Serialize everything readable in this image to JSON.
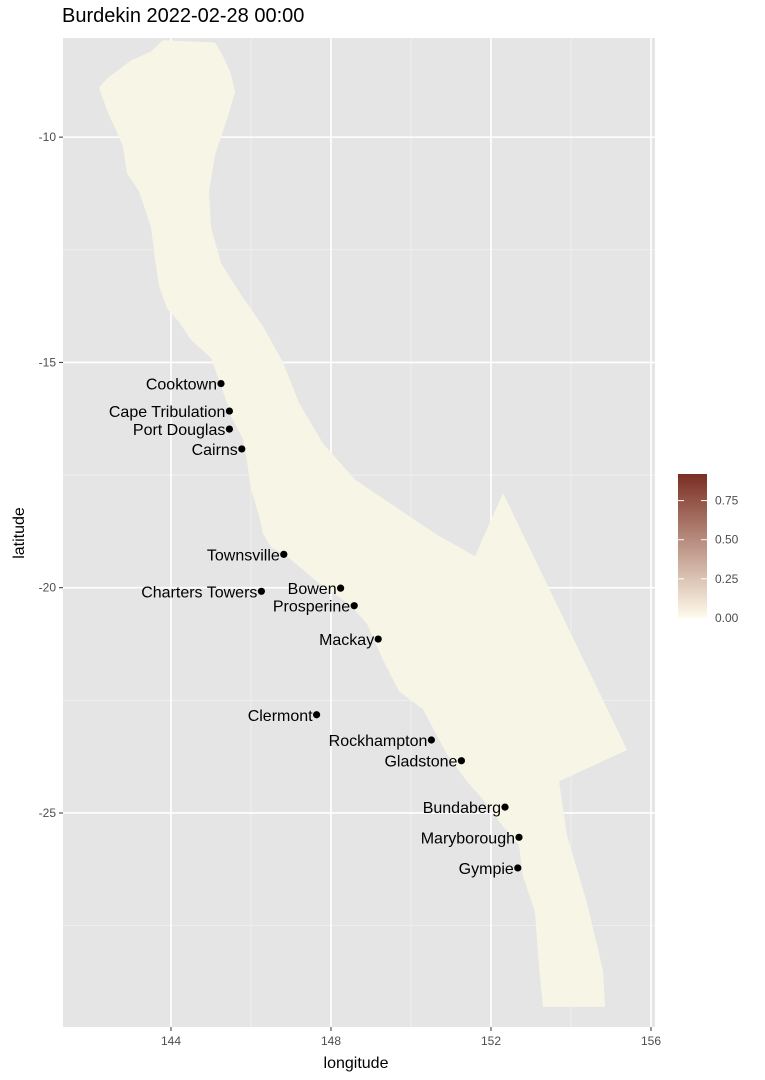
{
  "title": "Burdekin 2022-02-28 00:00",
  "chart_data": {
    "type": "map",
    "xlabel": "longitude",
    "ylabel": "latitude",
    "xlim": [
      141.3,
      156.1
    ],
    "ylim": [
      -29.75,
      -7.8
    ],
    "x_ticks": [
      {
        "value": 144,
        "label": "144"
      },
      {
        "value": 148,
        "label": "148"
      },
      {
        "value": 152,
        "label": "152"
      },
      {
        "value": 156,
        "label": "156"
      }
    ],
    "y_ticks": [
      {
        "value": -10,
        "label": "-10"
      },
      {
        "value": -15,
        "label": "-15"
      },
      {
        "value": -20,
        "label": "-20"
      },
      {
        "value": -25,
        "label": "-25"
      }
    ],
    "grid": true,
    "panel_color": "#e5e5e5",
    "region_color": "#f7f6e6",
    "region_outline": [
      [
        143.8,
        -7.85
      ],
      [
        145.1,
        -7.9
      ],
      [
        145.3,
        -8.2
      ],
      [
        145.5,
        -8.6
      ],
      [
        145.6,
        -9.0
      ],
      [
        145.4,
        -9.6
      ],
      [
        145.1,
        -10.4
      ],
      [
        144.95,
        -11.2
      ],
      [
        145.0,
        -12.0
      ],
      [
        145.25,
        -12.8
      ],
      [
        145.75,
        -13.5
      ],
      [
        146.3,
        -14.2
      ],
      [
        146.8,
        -15.0
      ],
      [
        147.2,
        -15.9
      ],
      [
        147.8,
        -16.8
      ],
      [
        148.6,
        -17.6
      ],
      [
        149.6,
        -18.2
      ],
      [
        150.6,
        -18.8
      ],
      [
        151.6,
        -19.3
      ],
      [
        152.3,
        -17.9
      ],
      [
        155.4,
        -23.6
      ],
      [
        153.7,
        -24.3
      ],
      [
        153.9,
        -25.5
      ],
      [
        154.4,
        -27.0
      ],
      [
        154.8,
        -28.5
      ],
      [
        154.85,
        -29.3
      ],
      [
        153.3,
        -29.3
      ],
      [
        153.2,
        -28.4
      ],
      [
        153.1,
        -27.2
      ],
      [
        152.8,
        -26.4
      ],
      [
        152.7,
        -25.7
      ],
      [
        152.3,
        -25.3
      ],
      [
        151.8,
        -24.7
      ],
      [
        151.4,
        -24.3
      ],
      [
        150.9,
        -23.7
      ],
      [
        150.6,
        -23.2
      ],
      [
        150.3,
        -22.7
      ],
      [
        149.7,
        -22.3
      ],
      [
        149.3,
        -21.6
      ],
      [
        149.1,
        -21.2
      ],
      [
        148.9,
        -20.8
      ],
      [
        148.5,
        -20.4
      ],
      [
        148.2,
        -20.2
      ],
      [
        147.7,
        -19.9
      ],
      [
        147.3,
        -19.6
      ],
      [
        146.9,
        -19.3
      ],
      [
        146.5,
        -19.1
      ],
      [
        146.3,
        -18.8
      ],
      [
        146.2,
        -18.4
      ],
      [
        146.0,
        -17.8
      ],
      [
        145.9,
        -17.2
      ],
      [
        145.8,
        -16.7
      ],
      [
        145.5,
        -16.2
      ],
      [
        145.4,
        -15.9
      ],
      [
        145.2,
        -15.4
      ],
      [
        145.0,
        -14.9
      ],
      [
        144.5,
        -14.5
      ],
      [
        144.2,
        -14.1
      ],
      [
        143.9,
        -13.8
      ],
      [
        143.7,
        -13.3
      ],
      [
        143.6,
        -12.7
      ],
      [
        143.5,
        -12.0
      ],
      [
        143.2,
        -11.2
      ],
      [
        142.9,
        -10.8
      ],
      [
        142.8,
        -10.2
      ],
      [
        142.4,
        -9.4
      ],
      [
        142.2,
        -8.9
      ],
      [
        142.4,
        -8.7
      ],
      [
        143.0,
        -8.3
      ],
      [
        143.5,
        -8.1
      ]
    ],
    "cities": [
      {
        "name": "Cooktown",
        "lon": 145.25,
        "lat": -15.47
      },
      {
        "name": "Cape Tribulation",
        "lon": 145.46,
        "lat": -16.08
      },
      {
        "name": "Port Douglas",
        "lon": 145.46,
        "lat": -16.48
      },
      {
        "name": "Cairns",
        "lon": 145.77,
        "lat": -16.92
      },
      {
        "name": "Townsville",
        "lon": 146.82,
        "lat": -19.26
      },
      {
        "name": "Charters Towers",
        "lon": 146.26,
        "lat": -20.08
      },
      {
        "name": "Bowen",
        "lon": 148.24,
        "lat": -20.01
      },
      {
        "name": "Prosperine",
        "lon": 148.58,
        "lat": -20.4
      },
      {
        "name": "Mackay",
        "lon": 149.18,
        "lat": -21.14
      },
      {
        "name": "Clermont",
        "lon": 147.64,
        "lat": -22.82
      },
      {
        "name": "Rockhampton",
        "lon": 150.51,
        "lat": -23.38
      },
      {
        "name": "Gladstone",
        "lon": 151.26,
        "lat": -23.84
      },
      {
        "name": "Bundaberg",
        "lon": 152.35,
        "lat": -24.87
      },
      {
        "name": "Maryborough",
        "lon": 152.7,
        "lat": -25.54
      },
      {
        "name": "Gympie",
        "lon": 152.67,
        "lat": -26.22
      }
    ],
    "legend": {
      "placement": "right",
      "min": 0,
      "max": 0.92,
      "color_low": "#fffbeb",
      "color_high": "#7a2e22",
      "ticks": [
        {
          "value": 0.0,
          "label": "0.00"
        },
        {
          "value": 0.25,
          "label": "0.25"
        },
        {
          "value": 0.5,
          "label": "0.50"
        },
        {
          "value": 0.75,
          "label": "0.75"
        }
      ]
    }
  }
}
